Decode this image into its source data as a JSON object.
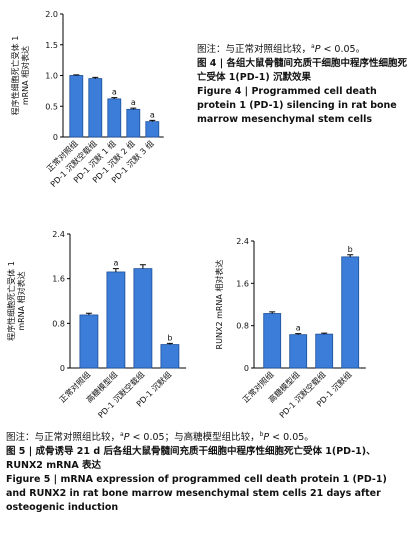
{
  "chart_data": [
    {
      "type": "bar",
      "ylabel": [
        "程序性细胞死亡受体 1",
        "mRNA 相对表达"
      ],
      "categories": [
        "正常对照组",
        "PD-1 沉默空载组",
        "PD-1 沉默 1 组",
        "PD-1 沉默 2 组",
        "PD-1 沉默 3 组"
      ],
      "values": [
        1.0,
        0.95,
        0.62,
        0.45,
        0.25
      ],
      "errors": [
        0.01,
        0.02,
        0.02,
        0.02,
        0.02
      ],
      "annotations": [
        null,
        null,
        "a",
        "a",
        "a"
      ],
      "color": "#3b7dd8",
      "ylim": [
        0,
        2
      ],
      "yticks": [
        0,
        0.5,
        {
          "value": 1,
          "label": "1.0"
        },
        1.5,
        {
          "value": 2,
          "label": "2.0"
        }
      ]
    },
    {
      "type": "bar",
      "ylabel": [
        "程序性细胞死亡受体 1",
        "mRNA 相对表达"
      ],
      "categories": [
        "正常对照组",
        "高糖模型组",
        "PD-1 沉默空载组",
        "PD-1 沉默组"
      ],
      "values": [
        0.95,
        1.72,
        1.78,
        0.42
      ],
      "errors": [
        0.03,
        0.06,
        0.07,
        0.02
      ],
      "annotations": [
        null,
        "a",
        null,
        "b"
      ],
      "color": "#3b7dd8",
      "ylim": [
        0,
        2.4
      ],
      "yticks": [
        0,
        0.8,
        1.6,
        2.4
      ]
    },
    {
      "type": "bar",
      "ylabel": [
        "RUNX2 mRNA 相对表达"
      ],
      "categories": [
        "正常对照组",
        "高糖模型组",
        "PD-1 沉默空载组",
        "PD-1 沉默组"
      ],
      "values": [
        1.03,
        0.63,
        0.64,
        2.1
      ],
      "errors": [
        0.03,
        0.02,
        0.02,
        0.04
      ],
      "annotations": [
        null,
        "a",
        null,
        "b"
      ],
      "color": "#3b7dd8",
      "ylim": [
        0,
        2.4
      ],
      "yticks": [
        0,
        0.8,
        1.6,
        2.4
      ]
    }
  ],
  "figure4": {
    "note": [
      "图注：与正常对照组比较，",
      "a",
      "P",
      " < 0.05。"
    ],
    "title_cn": "图 4 | 各组大鼠骨髓间充质干细胞中程序性细胞死亡受体 1(PD-1) 沉默效果",
    "title_en": "Figure 4 | Programmed cell death protein 1 (PD-1) silencing in rat bone marrow mesenchymal stem cells"
  },
  "figure5": {
    "note": [
      "图注：与正常对照组比较，",
      "a",
      "P",
      " < 0.05；与高糖模型组比较，",
      "b",
      "P",
      " < 0.05。"
    ],
    "title_cn": "图 5 | 成骨诱导 21 d 后各组大鼠骨髓间充质干细胞中程序性细胞死亡受体 1(PD-1)、RUNX2 mRNA 表达",
    "title_en": "Figure 5 | mRNA expression of programmed cell death protein 1 (PD-1) and RUNX2 in rat bone marrow mesenchymal stem cells 21 days after osteogenic induction"
  }
}
